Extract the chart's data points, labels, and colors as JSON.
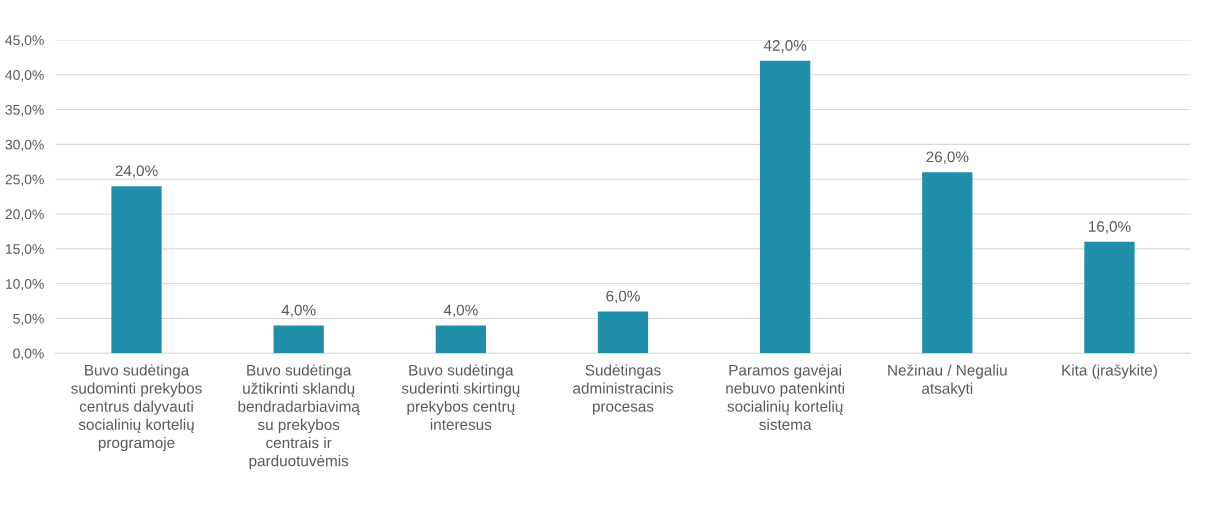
{
  "chart_data": {
    "type": "bar",
    "categories": [
      "Buvo sudėtinga\nsudominti prekybos\ncentrus dalyvauti\nsocialinių kortelių\nprogramoje",
      "Buvo sudėtinga\nužtikrinti sklandų\nbendradarbiavimą\nsu prekybos\ncentrais ir\nparduotuvėmis",
      "Buvo sudėtinga\nsuderinti skirtingų\nprekybos centrų\ninteresus",
      "Sudėtingas\nadministracinis\nprocesas",
      "Paramos gavėjai\nnebuvo patenkinti\nsocialinių kortelių\nsistema",
      "Nežinau / Negaliu\natsakyti",
      "Kita (įrašykite)"
    ],
    "values": [
      24,
      4,
      4,
      6,
      42,
      26,
      16
    ],
    "value_labels": [
      "24,0%",
      "4,0%",
      "4,0%",
      "6,0%",
      "42,0%",
      "26,0%",
      "16,0%"
    ],
    "color": "#1f8ea8",
    "ylim": [
      0,
      45
    ],
    "yticks": [
      {
        "value": 0,
        "label": "0,0%"
      },
      {
        "value": 5,
        "label": "5,0%"
      },
      {
        "value": 10,
        "label": "10,0%"
      },
      {
        "value": 15,
        "label": "15,0%"
      },
      {
        "value": 20,
        "label": "20,0%"
      },
      {
        "value": 25,
        "label": "25,0%"
      },
      {
        "value": 30,
        "label": "30,0%"
      },
      {
        "value": 35,
        "label": "35,0%"
      },
      {
        "value": 40,
        "label": "40,0%"
      },
      {
        "value": 45,
        "label": "45,0%"
      }
    ],
    "grid": "y"
  }
}
